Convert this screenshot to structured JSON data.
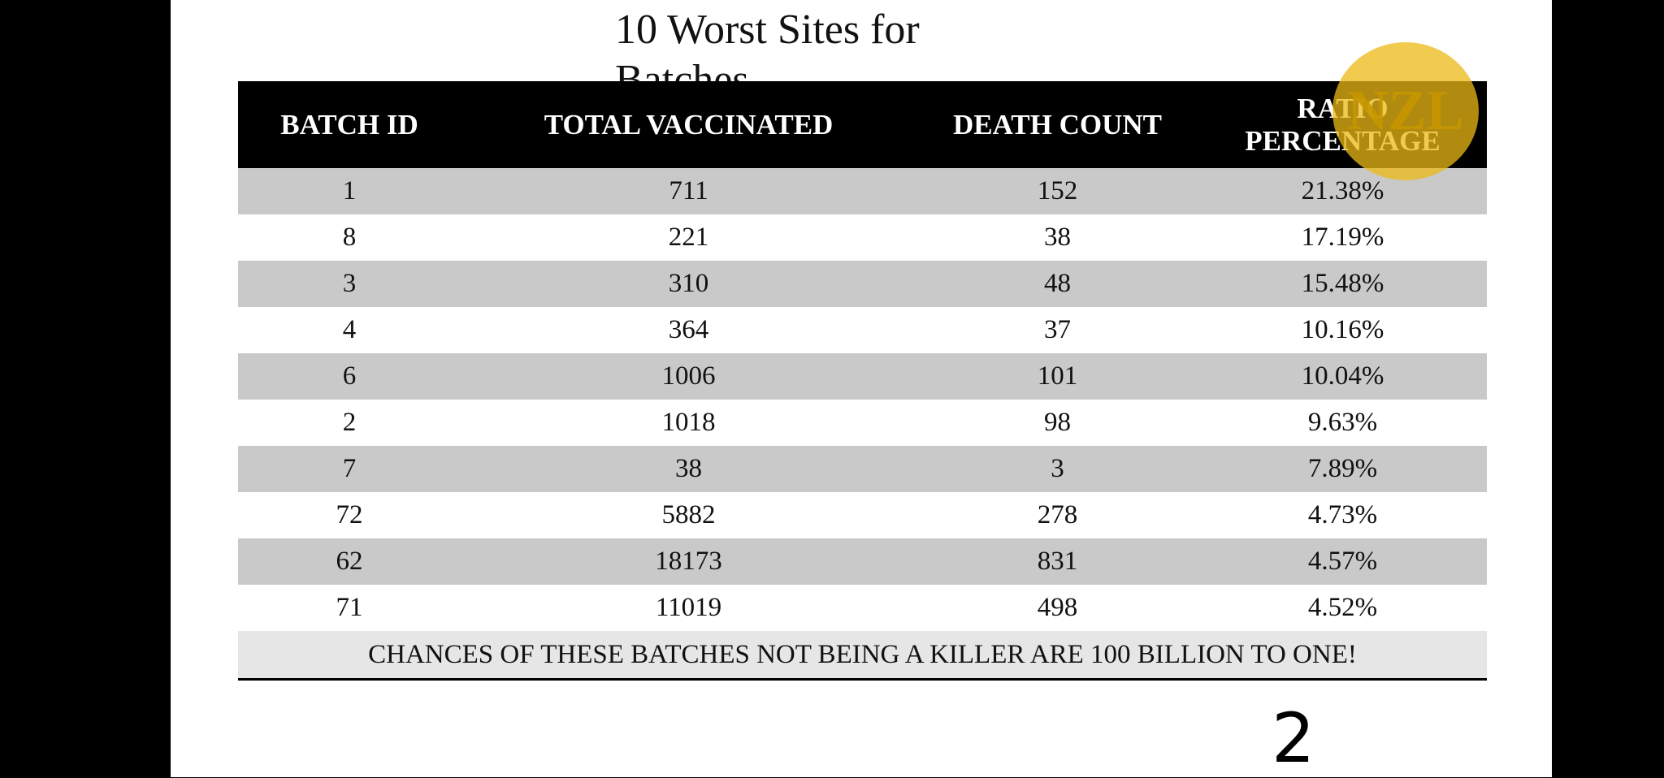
{
  "header": {
    "title": "10 Worst Sites for Batches"
  },
  "table": {
    "columns": [
      "BATCH ID",
      "TOTAL VACCINATED",
      "DEATH COUNT",
      "RATIO PERCENTAGE"
    ],
    "rows": [
      [
        1,
        711,
        152,
        "21.38%"
      ],
      [
        8,
        221,
        38,
        "17.19%"
      ],
      [
        3,
        310,
        48,
        "15.48%"
      ],
      [
        4,
        364,
        37,
        "10.16%"
      ],
      [
        6,
        1006,
        101,
        "10.04%"
      ],
      [
        2,
        1018,
        98,
        "9.63%"
      ],
      [
        7,
        38,
        3,
        "7.89%"
      ],
      [
        72,
        5882,
        278,
        "4.73%"
      ],
      [
        62,
        18173,
        831,
        "4.57%"
      ],
      [
        71,
        11019,
        498,
        "4.52%"
      ]
    ],
    "footer": "CHANCES OF THESE BATCHES NOT BEING A KILLER ARE 100 BILLION TO ONE!"
  },
  "watermark": "NZL",
  "page_number": "2"
}
